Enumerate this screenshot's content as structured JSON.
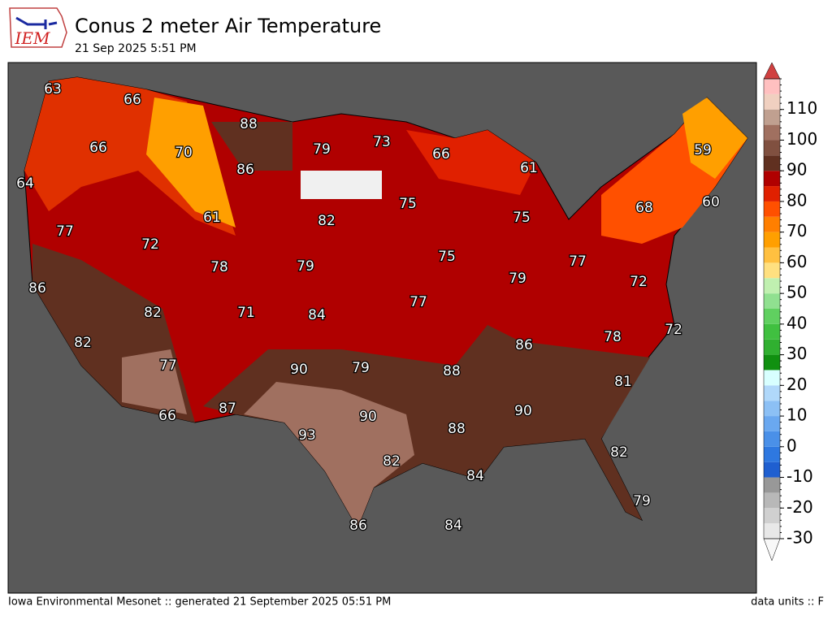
{
  "header": {
    "logo": "IEM",
    "title": "Conus 2 meter Air Temperature",
    "subtitle": "21 Sep 2025 5:51 PM"
  },
  "map": {
    "labels": [
      63,
      66,
      88,
      79,
      73,
      66,
      61,
      59,
      66,
      70,
      86,
      64,
      61,
      82,
      75,
      68,
      60,
      77,
      72,
      78,
      79,
      75,
      75,
      77,
      79,
      72,
      86,
      82,
      71,
      84,
      77,
      72,
      82,
      78,
      86,
      77,
      90,
      79,
      88,
      81,
      66,
      87,
      90,
      90,
      88,
      93,
      82,
      82,
      84,
      79,
      86,
      84
    ]
  },
  "colorbar": {
    "min": -30,
    "max": 120,
    "step": 5,
    "colors": [
      "#e8e8e8",
      "#d0d0d0",
      "#b8b8b8",
      "#989898",
      "#1f5fd0",
      "#2e78e0",
      "#4a90e8",
      "#6aa8f0",
      "#8cc0f5",
      "#b0d8fa",
      "#d8ffff",
      "#109010",
      "#30b030",
      "#40c040",
      "#60d060",
      "#90e090",
      "#c0f0b0",
      "#ffe080",
      "#ffc040",
      "#ff9f00",
      "#ff7f00",
      "#ff5000",
      "#e02000",
      "#b00000",
      "#603020",
      "#805040",
      "#a07060",
      "#c0a090",
      "#f0d0c0",
      "#ffc0c0"
    ],
    "ticks": [
      -30,
      -20,
      -10,
      0,
      10,
      20,
      30,
      40,
      50,
      60,
      70,
      80,
      90,
      100,
      110
    ]
  },
  "footer": {
    "left": "Iowa Environmental Mesonet :: generated 21 September 2025 05:51 PM",
    "right": "data units :: F"
  }
}
